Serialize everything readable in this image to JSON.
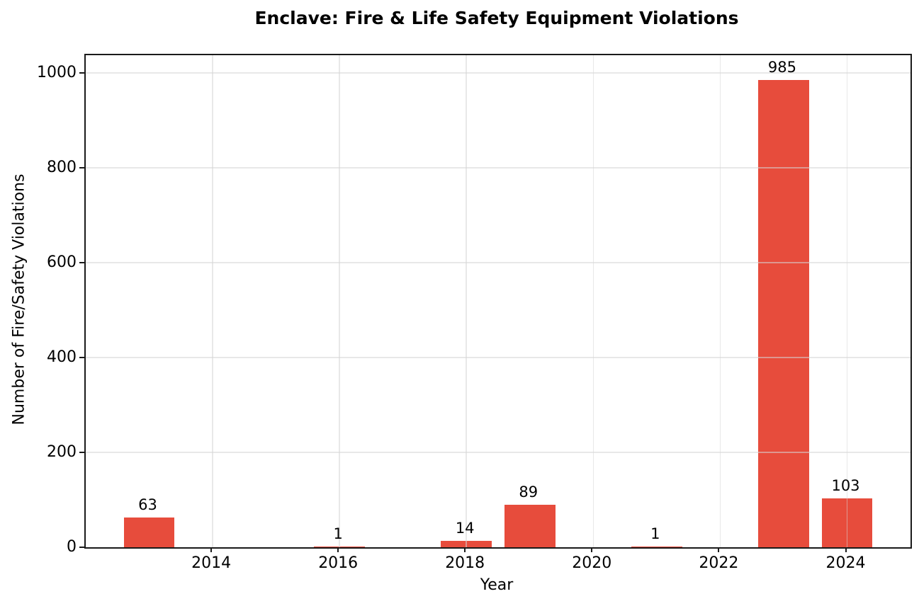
{
  "chart_data": {
    "type": "bar",
    "title": "Enclave: Fire & Life Safety Equipment Violations",
    "xlabel": "Year",
    "ylabel": "Number of Fire/Safety Violations",
    "categories": [
      2013,
      2016,
      2018,
      2019,
      2021,
      2023,
      2024
    ],
    "values": [
      63,
      1,
      14,
      89,
      1,
      985,
      103
    ],
    "value_labels": [
      "63",
      "1",
      "14",
      "89",
      "1",
      "985",
      "103"
    ],
    "bar_color": "#e74c3c",
    "bar_width_years": 0.8,
    "xlim": [
      2012,
      2025
    ],
    "ylim": [
      0,
      1037
    ],
    "x_ticks": [
      2014,
      2016,
      2018,
      2020,
      2022,
      2024
    ],
    "y_ticks": [
      0,
      200,
      400,
      600,
      800,
      1000
    ],
    "grid": true,
    "grid_over_bars": true,
    "legend": "none"
  }
}
